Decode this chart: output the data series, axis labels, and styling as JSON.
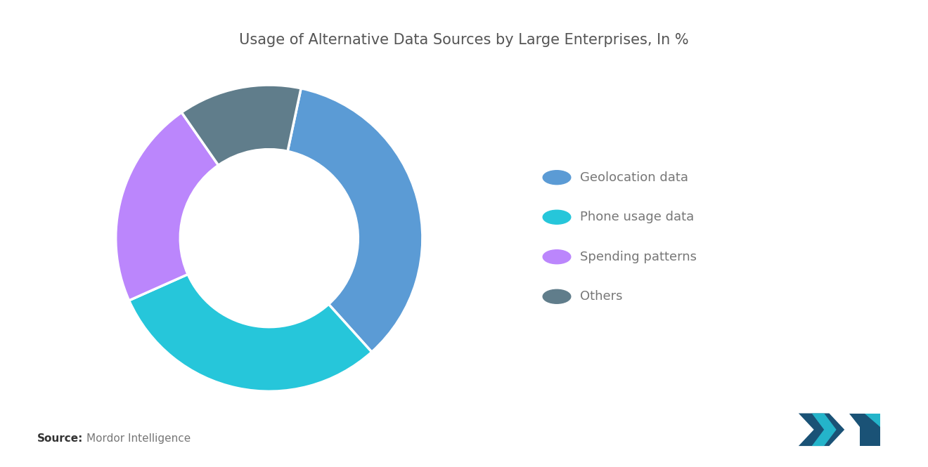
{
  "title": "Usage of Alternative Data Sources by Large Enterprises, In %",
  "title_fontsize": 15,
  "title_color": "#555555",
  "labels": [
    "Geolocation data",
    "Phone usage data",
    "Spending patterns",
    "Others"
  ],
  "values": [
    35,
    30,
    22,
    13
  ],
  "colors": [
    "#5B9BD5",
    "#26C6DA",
    "#BB86FC",
    "#607D8B"
  ],
  "background_color": "#FFFFFF",
  "source_bold": "Source:",
  "source_normal": "  Mordor Intelligence",
  "legend_fontsize": 13,
  "donut_width": 0.42,
  "startangle": 78
}
